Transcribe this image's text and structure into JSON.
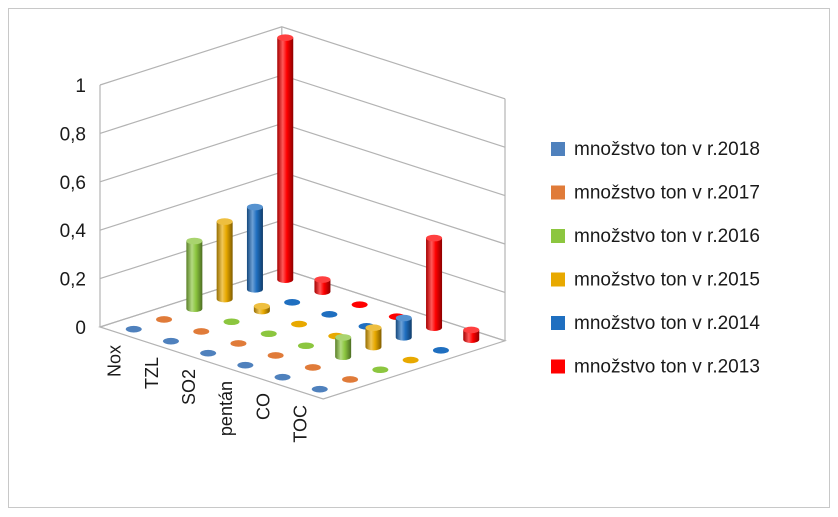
{
  "chart_data": {
    "type": "bar",
    "style": "3d-column",
    "categories": [
      "Nox",
      "TZL",
      "SO2",
      "pentán",
      "CO",
      "TOC"
    ],
    "series": [
      {
        "name": "množstvo ton v r.2018",
        "color": "#4f81bd",
        "values": [
          0,
          0,
          0,
          0,
          0,
          0
        ]
      },
      {
        "name": "množstvo ton v r.2017",
        "color": "#e07b39",
        "values": [
          0,
          0,
          0,
          0,
          0,
          0
        ]
      },
      {
        "name": "množstvo ton v r.2016",
        "color": "#8cc63f",
        "values": [
          0.28,
          0,
          0,
          0,
          0.08,
          0
        ]
      },
      {
        "name": "množstvo ton v r.2015",
        "color": "#e8a900",
        "values": [
          0.32,
          0.02,
          0,
          0,
          0.08,
          0
        ]
      },
      {
        "name": "množstvo ton v r.2014",
        "color": "#1f6fc0",
        "values": [
          0.34,
          0,
          0,
          0,
          0.08,
          0
        ]
      },
      {
        "name": "množstvo ton v r.2013",
        "color": "#ff0000",
        "values": [
          1.0,
          0.05,
          0,
          0,
          0.37,
          0.04
        ]
      }
    ],
    "yticks": [
      "0",
      "0,2",
      "0,4",
      "0,6",
      "0,8",
      "1"
    ],
    "ylim": [
      0,
      1
    ],
    "legend_position": "right",
    "grid": true
  }
}
